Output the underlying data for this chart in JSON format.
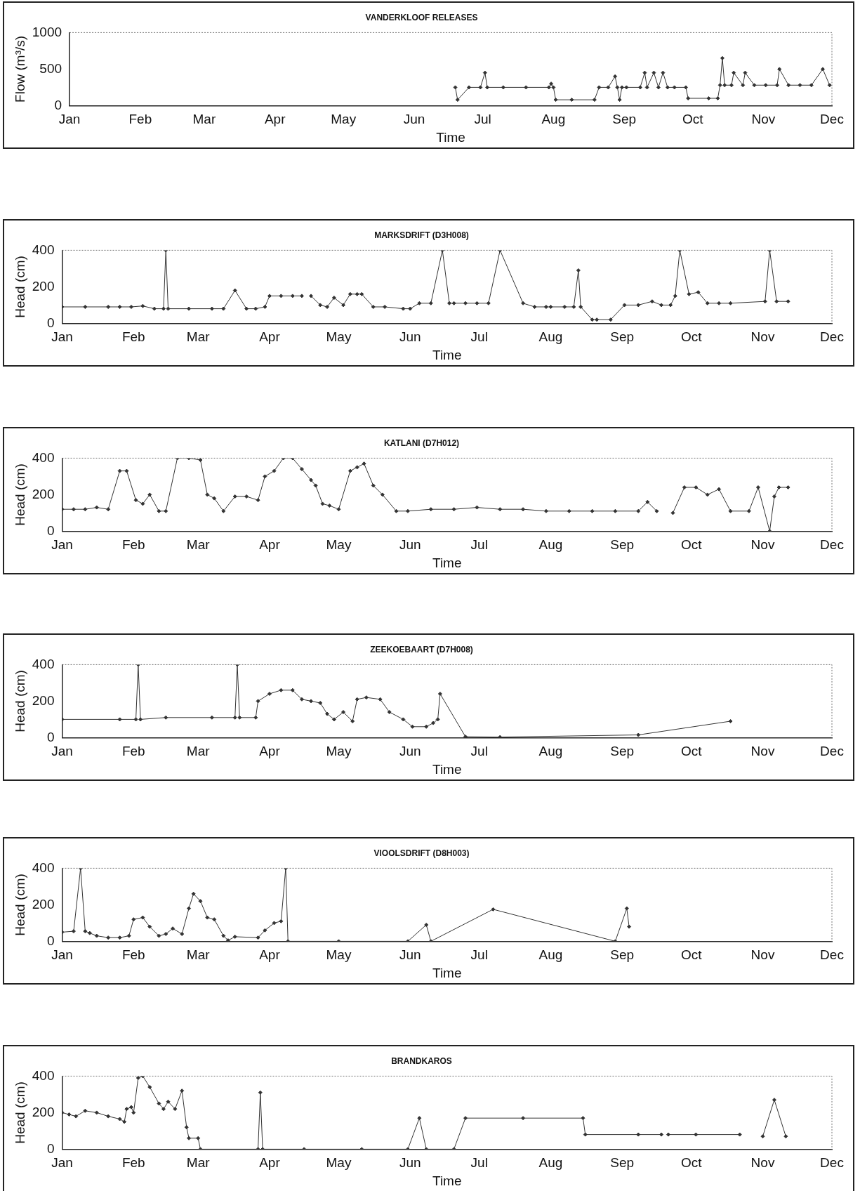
{
  "chart_data": [
    {
      "type": "line",
      "title": "VANDERKLOOF RELEASES",
      "xlabel": "Time",
      "ylabel": "Flow (m³/s)",
      "marker": "diamond",
      "xlim": [
        "--01-01",
        "--12-01"
      ],
      "ylim": [
        0,
        1000
      ],
      "yticks": [
        0,
        500,
        1000
      ],
      "xticks": [
        {
          "value": "--01-01",
          "label": "Jan"
        },
        {
          "value": "--02-01",
          "label": "Feb"
        },
        {
          "value": "--03-01",
          "label": "Mar"
        },
        {
          "value": "--04-01",
          "label": "Apr"
        },
        {
          "value": "--05-01",
          "label": "May"
        },
        {
          "value": "--06-01",
          "label": "Jun"
        },
        {
          "value": "--07-01",
          "label": "Jul"
        },
        {
          "value": "--08-01",
          "label": "Aug"
        },
        {
          "value": "--09-01",
          "label": "Sep"
        },
        {
          "value": "--10-01",
          "label": "Oct"
        },
        {
          "value": "--11-01",
          "label": "Nov"
        },
        {
          "value": "--12-01",
          "label": "Dec"
        }
      ],
      "x": [
        "--06-19",
        "--06-20",
        "--06-25",
        "--06-30",
        "--07-02",
        "--07-03",
        "--07-10",
        "--07-20",
        "--07-30",
        "--07-31",
        "--08-01",
        "--08-02",
        "--08-09",
        "--08-19",
        "--08-21",
        "--08-25",
        "--08-28",
        "--08-29",
        "--08-30",
        "--08-31",
        "--09-02",
        "--09-08",
        "--09-10",
        "--09-11",
        "--09-14",
        "--09-16",
        "--09-18",
        "--09-20",
        "--09-23",
        "--09-28",
        "--09-29",
        "--10-08",
        "--10-12",
        "--10-13",
        "--10-14",
        "--10-15",
        "--10-18",
        "--10-19",
        "--10-23",
        "--10-24",
        "--10-28",
        "--11-02",
        "--11-07",
        "--11-08",
        "--11-12",
        "--11-17",
        "--11-22",
        "--11-27",
        "--11-30"
      ],
      "series": [
        {
          "color": "#333333",
          "values": [
            250,
            80,
            250,
            250,
            450,
            250,
            250,
            250,
            250,
            300,
            250,
            80,
            80,
            80,
            250,
            250,
            400,
            250,
            80,
            250,
            250,
            250,
            450,
            250,
            450,
            250,
            450,
            250,
            250,
            250,
            100,
            100,
            100,
            280,
            650,
            280,
            280,
            450,
            280,
            450,
            280,
            280,
            280,
            500,
            280,
            280,
            280,
            500,
            280
          ]
        }
      ]
    },
    {
      "type": "line",
      "title": "MARKSDRIFT (D3H008)",
      "xlabel": "Time",
      "ylabel": "Head (cm)",
      "marker": "diamond",
      "xlim": [
        "--01-01",
        "--12-01"
      ],
      "ylim": [
        0,
        400
      ],
      "yticks": [
        0,
        200,
        400
      ],
      "xticks": [
        {
          "value": "--01-01",
          "label": "Jan"
        },
        {
          "value": "--02-01",
          "label": "Feb"
        },
        {
          "value": "--03-01",
          "label": "Mar"
        },
        {
          "value": "--04-01",
          "label": "Apr"
        },
        {
          "value": "--05-01",
          "label": "May"
        },
        {
          "value": "--06-01",
          "label": "Jun"
        },
        {
          "value": "--07-01",
          "label": "Jul"
        },
        {
          "value": "--08-01",
          "label": "Aug"
        },
        {
          "value": "--09-01",
          "label": "Sep"
        },
        {
          "value": "--10-01",
          "label": "Oct"
        },
        {
          "value": "--11-01",
          "label": "Nov"
        },
        {
          "value": "--12-01",
          "label": "Dec"
        }
      ],
      "x": [
        "--01-01",
        "--01-11",
        "--01-21",
        "--01-26",
        "--01-31",
        "--02-05",
        "--02-10",
        "--02-14",
        "--02-15",
        "--02-16",
        "--02-25",
        "--03-07",
        "--03-12",
        "--03-17",
        "--03-22",
        "--03-26",
        "--03-30",
        "--04-01",
        "--04-06",
        "--04-11",
        "--04-15",
        "--04-17",
        "--04-19",
        "--04-23",
        "--04-26",
        "--04-29",
        "--05-03",
        "--05-06",
        "--05-09",
        "--05-11",
        "--05-16",
        "--05-21",
        "--05-29",
        "--06-01",
        "--06-05",
        "--06-10",
        "--06-15",
        "--06-18",
        "--06-20",
        "--06-25",
        "--06-30",
        "--07-05",
        "--07-10",
        "--07-20",
        "--07-25",
        "--07-30",
        "--08-01",
        "--08-07",
        "--08-11",
        "--08-13",
        "--08-14",
        "--08-19",
        "--08-21",
        "--08-27",
        "--09-02",
        "--09-08",
        "--09-14",
        "--09-18",
        "--09-22",
        "--09-24",
        "--09-26",
        "--09-30",
        "--10-04",
        "--10-08",
        "--10-13",
        "--10-18",
        "--11-02",
        "--11-04",
        "--11-07",
        "--11-12"
      ],
      "series": [
        {
          "color": "#333333",
          "values": [
            90,
            90,
            90,
            90,
            90,
            95,
            80,
            80,
            400,
            80,
            80,
            80,
            80,
            180,
            80,
            80,
            90,
            150,
            150,
            150,
            150,
            null,
            150,
            100,
            90,
            140,
            100,
            160,
            160,
            160,
            90,
            90,
            80,
            80,
            110,
            110,
            400,
            110,
            110,
            110,
            110,
            110,
            400,
            110,
            90,
            90,
            90,
            90,
            90,
            290,
            90,
            20,
            20,
            20,
            100,
            100,
            120,
            100,
            100,
            150,
            400,
            160,
            170,
            110,
            110,
            110,
            120,
            400,
            120,
            120
          ]
        }
      ]
    },
    {
      "type": "line",
      "title": "KATLANI (D7H012)",
      "xlabel": "Time",
      "ylabel": "Head (cm)",
      "marker": "diamond",
      "xlim": [
        "--01-01",
        "--12-01"
      ],
      "ylim": [
        0,
        400
      ],
      "yticks": [
        0,
        200,
        400
      ],
      "xticks": [
        {
          "value": "--01-01",
          "label": "Jan"
        },
        {
          "value": "--02-01",
          "label": "Feb"
        },
        {
          "value": "--03-01",
          "label": "Mar"
        },
        {
          "value": "--04-01",
          "label": "Apr"
        },
        {
          "value": "--05-01",
          "label": "May"
        },
        {
          "value": "--06-01",
          "label": "Jun"
        },
        {
          "value": "--07-01",
          "label": "Jul"
        },
        {
          "value": "--08-01",
          "label": "Aug"
        },
        {
          "value": "--09-01",
          "label": "Sep"
        },
        {
          "value": "--10-01",
          "label": "Oct"
        },
        {
          "value": "--11-01",
          "label": "Nov"
        },
        {
          "value": "--12-01",
          "label": "Dec"
        }
      ],
      "x": [
        "--01-01",
        "--01-06",
        "--01-11",
        "--01-16",
        "--01-21",
        "--01-26",
        "--01-29",
        "--02-02",
        "--02-05",
        "--02-08",
        "--02-12",
        "--02-15",
        "--02-20",
        "--02-25",
        "--03-02",
        "--03-05",
        "--03-08",
        "--03-12",
        "--03-17",
        "--03-22",
        "--03-27",
        "--03-30",
        "--04-03",
        "--04-07",
        "--04-11",
        "--04-15",
        "--04-19",
        "--04-21",
        "--04-24",
        "--04-27",
        "--05-01",
        "--05-06",
        "--05-09",
        "--05-12",
        "--05-16",
        "--05-20",
        "--05-26",
        "--05-31",
        "--06-10",
        "--06-20",
        "--06-30",
        "--07-10",
        "--07-20",
        "--07-30",
        "--08-09",
        "--08-19",
        "--08-29",
        "--09-08",
        "--09-12",
        "--09-16",
        "--09-20",
        "--09-23",
        "--09-28",
        "--10-03",
        "--10-08",
        "--10-13",
        "--10-18",
        "--10-26",
        "--10-30",
        "--11-04",
        "--11-06",
        "--11-08",
        "--11-12"
      ],
      "series": [
        {
          "color": "#333333",
          "values": [
            120,
            120,
            120,
            130,
            120,
            330,
            330,
            170,
            150,
            200,
            110,
            110,
            400,
            400,
            390,
            200,
            180,
            110,
            190,
            190,
            170,
            300,
            330,
            400,
            400,
            340,
            280,
            250,
            150,
            140,
            120,
            330,
            350,
            370,
            250,
            200,
            110,
            110,
            120,
            120,
            130,
            120,
            120,
            110,
            110,
            110,
            110,
            110,
            160,
            110,
            null,
            100,
            240,
            240,
            200,
            230,
            110,
            110,
            240,
            0,
            190,
            240,
            240
          ]
        }
      ]
    },
    {
      "type": "line",
      "title": "ZEEKOEBAART (D7H008)",
      "xlabel": "Time",
      "ylabel": "Head (cm)",
      "marker": "diamond",
      "xlim": [
        "--01-01",
        "--12-01"
      ],
      "ylim": [
        0,
        400
      ],
      "yticks": [
        0,
        200,
        400
      ],
      "xticks": [
        {
          "value": "--01-01",
          "label": "Jan"
        },
        {
          "value": "--02-01",
          "label": "Feb"
        },
        {
          "value": "--03-01",
          "label": "Mar"
        },
        {
          "value": "--04-01",
          "label": "Apr"
        },
        {
          "value": "--05-01",
          "label": "May"
        },
        {
          "value": "--06-01",
          "label": "Jun"
        },
        {
          "value": "--07-01",
          "label": "Jul"
        },
        {
          "value": "--08-01",
          "label": "Aug"
        },
        {
          "value": "--09-01",
          "label": "Sep"
        },
        {
          "value": "--10-01",
          "label": "Oct"
        },
        {
          "value": "--11-01",
          "label": "Nov"
        },
        {
          "value": "--12-01",
          "label": "Dec"
        }
      ],
      "x": [
        "--01-01",
        "--01-26",
        "--02-02",
        "--02-03",
        "--02-04",
        "--02-15",
        "--03-07",
        "--03-17",
        "--03-18",
        "--03-19",
        "--03-26",
        "--03-27",
        "--04-01",
        "--04-06",
        "--04-11",
        "--04-15",
        "--04-19",
        "--04-23",
        "--04-26",
        "--04-29",
        "--05-03",
        "--05-07",
        "--05-09",
        "--05-13",
        "--05-19",
        "--05-23",
        "--05-29",
        "--06-02",
        "--06-08",
        "--06-11",
        "--06-13",
        "--06-14",
        "--06-25",
        "--07-10",
        "--09-08",
        "--10-18"
      ],
      "series": [
        {
          "color": "#333333",
          "values": [
            100,
            100,
            100,
            400,
            100,
            110,
            110,
            110,
            400,
            110,
            110,
            200,
            240,
            260,
            260,
            210,
            200,
            190,
            130,
            100,
            140,
            90,
            210,
            220,
            210,
            140,
            100,
            60,
            60,
            80,
            100,
            240,
            5,
            3,
            15,
            90
          ]
        }
      ]
    },
    {
      "type": "line",
      "title": "VIOOLSDRIFT (D8H003)",
      "xlabel": "Time",
      "ylabel": "Head (cm)",
      "marker": "diamond",
      "xlim": [
        "--01-01",
        "--12-01"
      ],
      "ylim": [
        0,
        400
      ],
      "yticks": [
        0,
        200,
        400
      ],
      "xticks": [
        {
          "value": "--01-01",
          "label": "Jan"
        },
        {
          "value": "--02-01",
          "label": "Feb"
        },
        {
          "value": "--03-01",
          "label": "Mar"
        },
        {
          "value": "--04-01",
          "label": "Apr"
        },
        {
          "value": "--05-01",
          "label": "May"
        },
        {
          "value": "--06-01",
          "label": "Jun"
        },
        {
          "value": "--07-01",
          "label": "Jul"
        },
        {
          "value": "--08-01",
          "label": "Aug"
        },
        {
          "value": "--09-01",
          "label": "Sep"
        },
        {
          "value": "--10-01",
          "label": "Oct"
        },
        {
          "value": "--11-01",
          "label": "Nov"
        },
        {
          "value": "--12-01",
          "label": "Dec"
        }
      ],
      "x": [
        "--01-01",
        "--01-06",
        "--01-09",
        "--01-11",
        "--01-13",
        "--01-16",
        "--01-21",
        "--01-26",
        "--01-30",
        "--02-01",
        "--02-05",
        "--02-08",
        "--02-12",
        "--02-15",
        "--02-18",
        "--02-22",
        "--02-25",
        "--02-27",
        "--03-02",
        "--03-05",
        "--03-08",
        "--03-12",
        "--03-14",
        "--03-17",
        "--03-27",
        "--03-30",
        "--04-03",
        "--04-06",
        "--04-08",
        "--04-09",
        "--05-01",
        "--05-31",
        "--06-08",
        "--06-10",
        "--07-07",
        "--08-29",
        "--09-03",
        "--09-04"
      ],
      "series": [
        {
          "color": "#333333",
          "values": [
            50,
            55,
            400,
            55,
            45,
            30,
            20,
            20,
            30,
            120,
            130,
            80,
            30,
            40,
            70,
            40,
            180,
            260,
            220,
            130,
            120,
            30,
            5,
            25,
            20,
            60,
            100,
            110,
            400,
            0,
            0,
            0,
            90,
            0,
            175,
            0,
            180,
            80
          ]
        }
      ]
    },
    {
      "type": "line",
      "title": "BRANDKAROS",
      "xlabel": "Time",
      "ylabel": "Head (cm)",
      "marker": "diamond",
      "xlim": [
        "--01-01",
        "--12-01"
      ],
      "ylim": [
        0,
        400
      ],
      "yticks": [
        0,
        200,
        400
      ],
      "xticks": [
        {
          "value": "--01-01",
          "label": "Jan"
        },
        {
          "value": "--02-01",
          "label": "Feb"
        },
        {
          "value": "--03-01",
          "label": "Mar"
        },
        {
          "value": "--04-01",
          "label": "Apr"
        },
        {
          "value": "--05-01",
          "label": "May"
        },
        {
          "value": "--06-01",
          "label": "Jun"
        },
        {
          "value": "--07-01",
          "label": "Jul"
        },
        {
          "value": "--08-01",
          "label": "Aug"
        },
        {
          "value": "--09-01",
          "label": "Sep"
        },
        {
          "value": "--10-01",
          "label": "Oct"
        },
        {
          "value": "--11-01",
          "label": "Nov"
        },
        {
          "value": "--12-01",
          "label": "Dec"
        }
      ],
      "x": [
        "--01-01",
        "--01-04",
        "--01-07",
        "--01-11",
        "--01-16",
        "--01-21",
        "--01-26",
        "--01-28",
        "--01-29",
        "--01-31",
        "--02-01",
        "--02-03",
        "--02-05",
        "--02-08",
        "--02-12",
        "--02-14",
        "--02-16",
        "--02-19",
        "--02-22",
        "--02-24",
        "--02-25",
        "--03-01",
        "--03-02",
        "--03-27",
        "--03-28",
        "--03-29",
        "--04-16",
        "--05-11",
        "--05-31",
        "--06-05",
        "--06-08",
        "--06-20",
        "--06-25",
        "--07-20",
        "--08-15",
        "--08-16",
        "--09-08",
        "--09-18",
        "--09-20",
        "--09-21",
        "--10-03",
        "--10-22",
        "--10-25",
        "--11-01",
        "--11-06",
        "--11-11"
      ],
      "series": [
        {
          "color": "#333333",
          "values": [
            200,
            190,
            180,
            210,
            200,
            180,
            165,
            150,
            220,
            230,
            200,
            390,
            400,
            340,
            250,
            220,
            260,
            220,
            320,
            120,
            60,
            60,
            0,
            0,
            310,
            0,
            0,
            0,
            0,
            170,
            0,
            0,
            170,
            170,
            170,
            80,
            80,
            80,
            null,
            80,
            80,
            80,
            null,
            70,
            270,
            70
          ]
        }
      ]
    }
  ]
}
